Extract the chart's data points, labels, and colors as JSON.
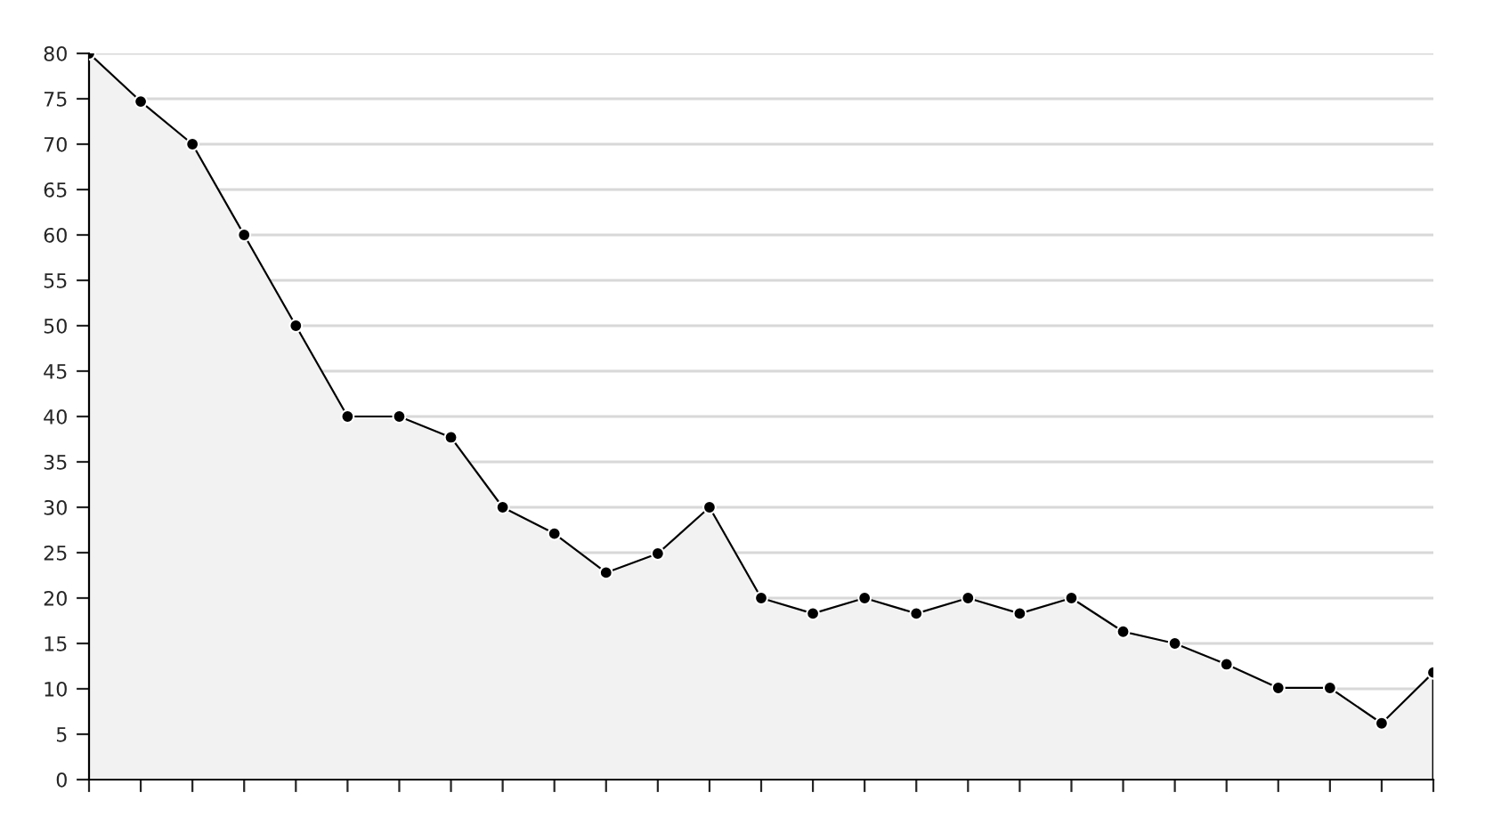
{
  "chart_data": {
    "type": "area",
    "categories": [
      null,
      null,
      null,
      null,
      null,
      null,
      null,
      null,
      null,
      null,
      null,
      null,
      null,
      null,
      null,
      null,
      null,
      null,
      null,
      null,
      null,
      null,
      null,
      null,
      null,
      null,
      null
    ],
    "series": [
      {
        "color": "#000000",
        "values": [
          80,
          74.7,
          70,
          60,
          50,
          40,
          40,
          37.7,
          30,
          27.1,
          22.8,
          24.9,
          30,
          20,
          18.3,
          20,
          18.3,
          20,
          18.3,
          20,
          16.3,
          15,
          12.7,
          10.1,
          10.1,
          6.2,
          11.8
        ]
      }
    ],
    "ylim": [
      0,
      80
    ],
    "yticks": [
      0,
      5,
      10,
      15,
      20,
      25,
      30,
      35,
      40,
      45,
      50,
      55,
      60,
      65,
      70,
      75,
      80
    ],
    "grid": "y",
    "marker": "circle",
    "line_style": "solid"
  }
}
